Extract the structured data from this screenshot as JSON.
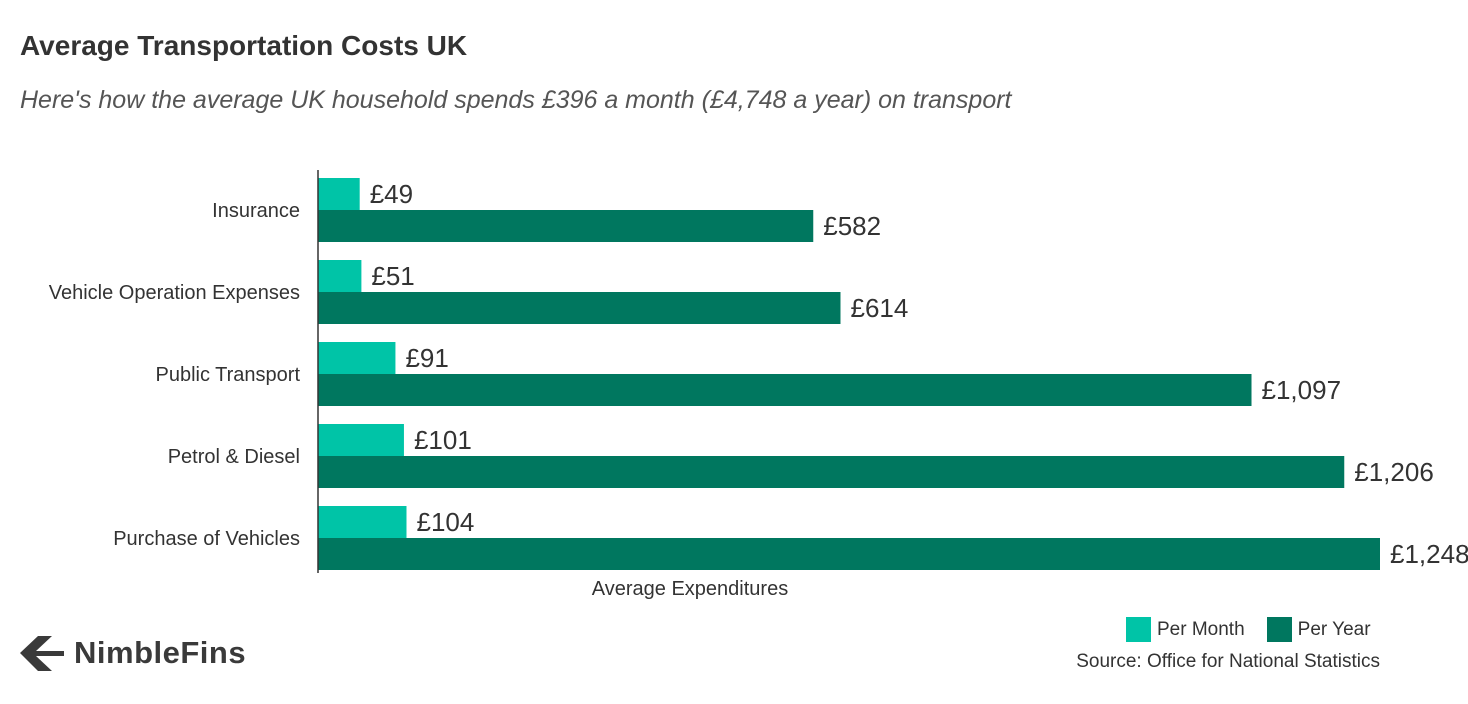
{
  "header": {
    "title": "Average Transportation Costs UK",
    "subtitle": "Here's how the average UK household spends £396 a month (£4,748 a year) on transport"
  },
  "chart_data": {
    "type": "bar",
    "orientation": "horizontal",
    "categories": [
      "Insurance",
      "Vehicle Operation Expenses",
      "Public Transport",
      "Petrol & Diesel",
      "Purchase of Vehicles"
    ],
    "series": [
      {
        "name": "Per Month",
        "values": [
          49,
          51,
          91,
          101,
          104
        ],
        "labels": [
          "£49",
          "£51",
          "£91",
          "£101",
          "£104"
        ],
        "color": "#00c4a7"
      },
      {
        "name": "Per Year",
        "values": [
          582,
          614,
          1097,
          1206,
          1248
        ],
        "labels": [
          "£582",
          "£614",
          "£1,097",
          "£1,206",
          "£1,248"
        ],
        "color": "#00775f"
      }
    ],
    "xlabel": "Average Expenditures",
    "ylabel": "",
    "xlim": [
      0,
      1248
    ],
    "grid": false,
    "legend_position": "bottom-right"
  },
  "footer": {
    "source": "Source: Office for National Statistics",
    "logo_text": "NimbleFins"
  },
  "colors": {
    "per_month": "#00c4a7",
    "per_year": "#00775f",
    "text": "#333333"
  }
}
